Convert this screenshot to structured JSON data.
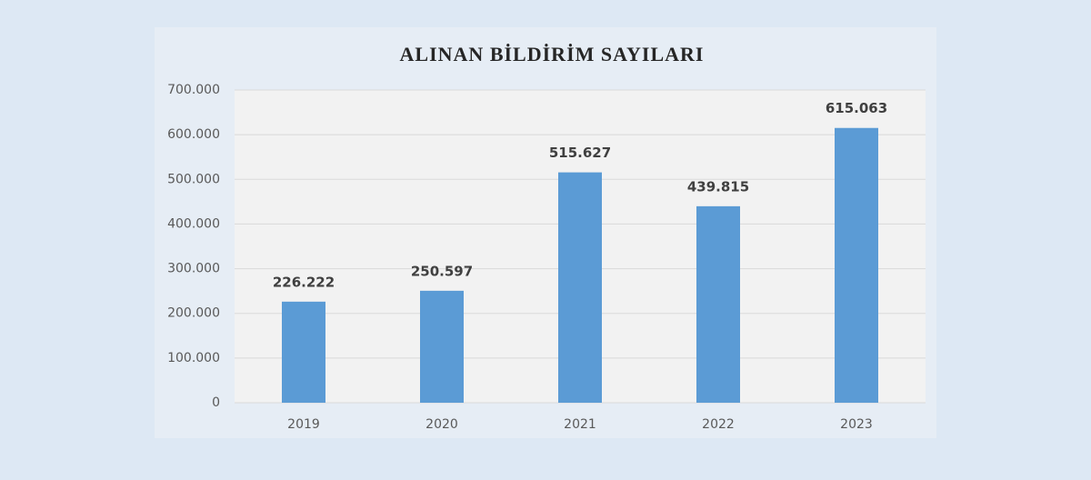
{
  "chart_data": {
    "type": "bar",
    "title": "ALINAN BİLDİRİM SAYILARI",
    "categories": [
      "2019",
      "2020",
      "2021",
      "2022",
      "2023"
    ],
    "values": [
      226222,
      250597,
      515627,
      439815,
      615063
    ],
    "value_labels": [
      "226.222",
      "250.597",
      "515.627",
      "439.815",
      "615.063"
    ],
    "color": "#5b9bd5",
    "ylim": [
      0,
      700000
    ],
    "yticks": [
      0,
      {
        "value": 100000,
        "label": "100.000"
      },
      {
        "value": 200000,
        "label": "200.000"
      },
      {
        "value": 300000,
        "label": "300.000"
      },
      {
        "value": 400000,
        "label": "400.000"
      },
      {
        "value": 500000,
        "label": "500.000"
      },
      {
        "value": 600000,
        "label": "600.000"
      },
      {
        "value": 700000,
        "label": "700.000"
      }
    ],
    "grid": true
  }
}
